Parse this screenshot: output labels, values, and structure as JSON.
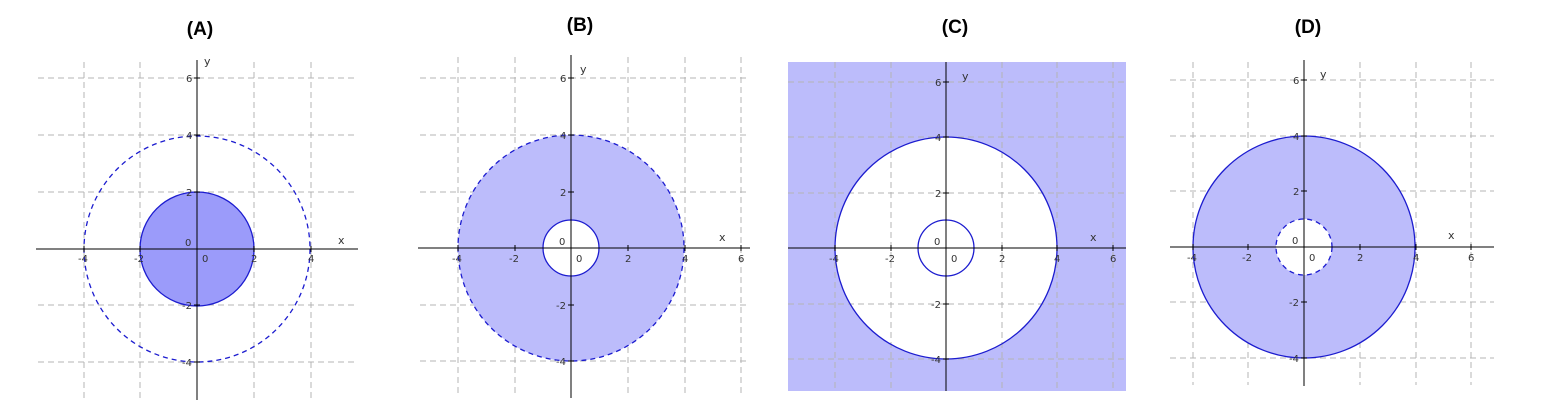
{
  "panels": [
    {
      "id": "A",
      "label": "(A)",
      "x_ticks": [
        "-4",
        "-2",
        "2",
        "4"
      ],
      "y_ticks": [
        "6",
        "4",
        "2",
        "-2",
        "-4"
      ],
      "origin_label": "0",
      "origin_x_label": "0",
      "x_axis_label": "x",
      "y_axis_label": "y",
      "regions": [
        {
          "shape": "disk",
          "radius": 2,
          "fill": "#9b9bfa",
          "boundary": "solid"
        },
        {
          "shape": "circle",
          "radius": 4,
          "boundary": "dashed"
        }
      ]
    },
    {
      "id": "B",
      "label": "(B)",
      "x_ticks": [
        "-4",
        "-2",
        "2",
        "4",
        "6"
      ],
      "y_ticks": [
        "6",
        "4",
        "2",
        "-2",
        "-4"
      ],
      "origin_label": "0",
      "origin_x_label": "0",
      "x_axis_label": "x",
      "y_axis_label": "y",
      "regions": [
        {
          "shape": "annulus",
          "inner_radius": 1,
          "outer_radius": 4,
          "fill": "#bcbcfb",
          "inner_boundary": "solid",
          "outer_boundary": "dashed"
        }
      ]
    },
    {
      "id": "C",
      "label": "(C)",
      "x_ticks": [
        "-4",
        "-2",
        "2",
        "4",
        "6"
      ],
      "y_ticks": [
        "6",
        "4",
        "2",
        "-2",
        "-4"
      ],
      "origin_label": "0",
      "origin_x_label": "0",
      "x_axis_label": "x",
      "y_axis_label": "y",
      "regions": [
        {
          "shape": "exterior",
          "radius": 4,
          "fill": "#bcbcfb",
          "boundary": "solid"
        },
        {
          "shape": "circle",
          "radius": 1,
          "boundary": "solid"
        }
      ]
    },
    {
      "id": "D",
      "label": "(D)",
      "x_ticks": [
        "-4",
        "-2",
        "2",
        "4",
        "6"
      ],
      "y_ticks": [
        "6",
        "4",
        "2",
        "-2",
        "-4"
      ],
      "origin_label": "0",
      "origin_x_label": "0",
      "x_axis_label": "x",
      "y_axis_label": "y",
      "regions": [
        {
          "shape": "annulus",
          "inner_radius": 1,
          "outer_radius": 4,
          "fill": "#bcbcfb",
          "inner_boundary": "dashed",
          "outer_boundary": "solid"
        }
      ]
    }
  ],
  "colors": {
    "curve": "#1c1ccf",
    "axis": "#000000",
    "grid": "#b4b4b4"
  }
}
